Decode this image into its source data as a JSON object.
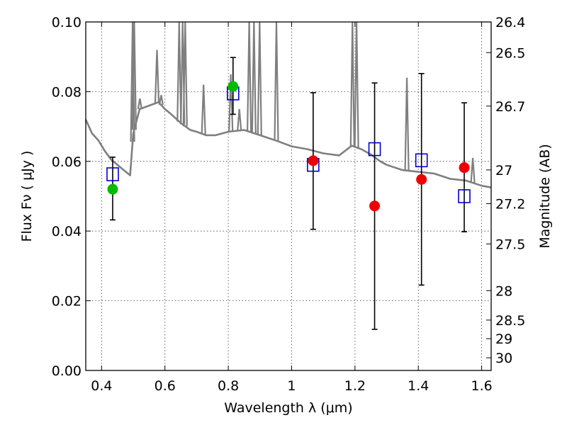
{
  "chart_data": {
    "type": "scatter",
    "xlabel": "Wavelength  λ (μm)",
    "ylabel": "Flux  Fν ( μJy )",
    "ylabel_right": "Magnitude (AB)",
    "xlim": [
      0.35,
      1.63
    ],
    "ylim": [
      0.0,
      0.1
    ],
    "grid": true,
    "x_ticks": [
      0.4,
      0.6,
      0.8,
      1.0,
      1.2,
      1.4,
      1.6
    ],
    "x_tick_labels": [
      "0.4",
      "0.6",
      "0.8",
      "1",
      "1.2",
      "1.4",
      "1.6"
    ],
    "y_ticks": [
      0.0,
      0.02,
      0.04,
      0.06,
      0.08,
      0.1
    ],
    "y_tick_labels": [
      "0.00",
      "0.02",
      "0.04",
      "0.06",
      "0.08",
      "0.10"
    ],
    "mag_ticks": [
      26.4,
      26.5,
      26.7,
      27,
      27.2,
      27.5,
      28,
      28.5,
      29,
      30
    ],
    "mag_tick_labels": [
      "26.4",
      "26.5",
      "26.7",
      "27",
      "27.2",
      "27.5",
      "28",
      "28.5",
      "29",
      "30"
    ],
    "colors": {
      "model": "#7f7f7f",
      "model_photometry": "#0000cc",
      "detection": "#00bb00",
      "observation": "#ee0000",
      "errorbar": "#000000"
    },
    "model_spectrum": {
      "x": [
        0.35,
        0.37,
        0.39,
        0.41,
        0.43,
        0.45,
        0.47,
        0.49,
        0.5,
        0.52,
        0.55,
        0.58,
        0.6,
        0.62,
        0.65,
        0.68,
        0.7,
        0.73,
        0.76,
        0.8,
        0.85,
        0.9,
        0.95,
        1.0,
        1.05,
        1.1,
        1.15,
        1.19,
        1.22,
        1.25,
        1.28,
        1.3,
        1.35,
        1.4,
        1.45,
        1.5,
        1.55,
        1.6,
        1.63
      ],
      "y": [
        0.072,
        0.068,
        0.066,
        0.063,
        0.0605,
        0.059,
        0.0575,
        0.056,
        0.068,
        0.075,
        0.076,
        0.077,
        0.075,
        0.0735,
        0.071,
        0.069,
        0.0685,
        0.0675,
        0.0675,
        0.0685,
        0.069,
        0.0675,
        0.066,
        0.0643,
        0.0635,
        0.0623,
        0.0617,
        0.0645,
        0.0635,
        0.062,
        0.06,
        0.059,
        0.0575,
        0.057,
        0.0565,
        0.055,
        0.0545,
        0.053,
        0.0525
      ]
    },
    "emission_lines": [
      {
        "x": 0.498,
        "peak": 0.1
      },
      {
        "x": 0.503,
        "peak": 0.1
      },
      {
        "x": 0.521,
        "peak": 0.078
      },
      {
        "x": 0.575,
        "peak": 0.092
      },
      {
        "x": 0.588,
        "peak": 0.079
      },
      {
        "x": 0.645,
        "peak": 0.1
      },
      {
        "x": 0.656,
        "peak": 0.1
      },
      {
        "x": 0.664,
        "peak": 0.1
      },
      {
        "x": 0.722,
        "peak": 0.082
      },
      {
        "x": 0.808,
        "peak": 0.085
      },
      {
        "x": 0.835,
        "peak": 0.075
      },
      {
        "x": 0.866,
        "peak": 0.1
      },
      {
        "x": 0.881,
        "peak": 0.1
      },
      {
        "x": 0.899,
        "peak": 0.1
      },
      {
        "x": 0.952,
        "peak": 0.1
      },
      {
        "x": 1.192,
        "peak": 0.1
      },
      {
        "x": 1.205,
        "peak": 0.1
      },
      {
        "x": 1.364,
        "peak": 0.084
      },
      {
        "x": 1.572,
        "peak": 0.061
      }
    ],
    "model_photometry": {
      "name": "",
      "x": [
        0.435,
        0.815,
        1.068,
        1.262,
        1.41,
        1.545
      ],
      "y": [
        0.0563,
        0.0795,
        0.059,
        0.0635,
        0.0603,
        0.05
      ]
    },
    "observations": [
      {
        "x": 0.435,
        "y": 0.052,
        "err_low": 0.0432,
        "err_high": 0.0612,
        "color": "green"
      },
      {
        "x": 0.815,
        "y": 0.0815,
        "err_low": 0.0735,
        "err_high": 0.0898,
        "color": "green"
      },
      {
        "x": 1.068,
        "y": 0.0602,
        "err_low": 0.0405,
        "err_high": 0.0797,
        "color": "red"
      },
      {
        "x": 1.262,
        "y": 0.0472,
        "err_low": 0.0118,
        "err_high": 0.0825,
        "color": "red"
      },
      {
        "x": 1.41,
        "y": 0.0548,
        "err_low": 0.0245,
        "err_high": 0.0852,
        "color": "red"
      },
      {
        "x": 1.545,
        "y": 0.0582,
        "err_low": 0.0398,
        "err_high": 0.0768,
        "color": "red"
      }
    ]
  }
}
